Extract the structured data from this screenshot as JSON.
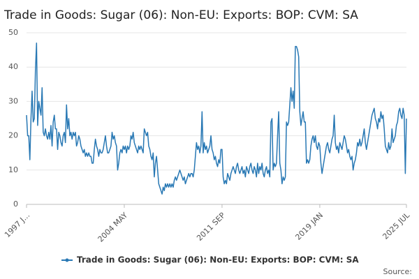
{
  "chart_data": {
    "type": "line",
    "title": "Trade in Goods: Sugar (06): Non-EU: Exports: BOP: CVM: SA",
    "source": "Source:",
    "categories": [
      "1997 J...",
      null,
      null,
      null,
      null,
      null,
      null,
      null,
      null,
      null,
      null,
      null,
      null,
      null,
      null,
      null,
      null,
      null,
      null,
      null,
      null,
      null,
      null,
      null,
      null,
      null,
      null,
      null,
      null,
      null,
      null,
      null,
      null,
      null,
      null,
      null,
      null,
      null,
      null,
      null,
      null,
      null,
      null,
      null,
      null,
      null,
      null,
      null,
      null,
      null,
      null,
      null,
      null,
      null,
      null,
      null,
      null,
      null,
      null,
      null,
      null,
      null,
      null,
      null,
      null,
      null,
      null,
      null,
      null,
      null,
      null,
      null,
      null,
      null,
      null,
      null,
      null,
      null,
      null,
      null,
      null,
      null,
      null,
      null,
      null,
      null,
      null,
      null,
      "2004 MAY",
      null,
      null,
      null,
      null,
      null,
      null,
      null,
      null,
      null,
      null,
      null,
      null,
      null,
      null,
      null,
      null,
      null,
      null,
      null,
      null,
      null,
      null,
      null,
      null,
      null,
      null,
      null,
      null,
      null,
      null,
      null,
      null,
      null,
      null,
      null,
      null,
      null,
      null,
      null,
      null,
      null,
      null,
      null,
      null,
      null,
      null,
      null,
      null,
      null,
      null,
      null,
      null,
      null,
      null,
      null,
      null,
      null,
      null,
      null,
      null,
      null,
      null,
      null,
      null,
      null,
      null,
      null,
      null,
      null,
      null,
      null,
      null,
      null,
      null,
      null,
      null,
      null,
      null,
      null,
      null,
      null,
      null,
      null,
      null,
      null,
      null,
      null,
      "2011 SEP",
      null,
      null,
      null,
      null,
      null,
      null,
      null,
      null,
      null,
      null,
      null,
      null,
      null,
      null,
      null,
      null,
      null,
      null,
      null,
      null,
      null,
      null,
      null,
      null,
      null,
      null,
      null,
      null,
      null,
      null,
      null,
      null,
      null,
      null,
      null,
      null,
      null,
      null,
      null,
      null,
      null,
      null,
      null,
      null,
      null,
      null,
      null,
      null,
      null,
      null,
      null,
      null,
      null,
      null,
      null,
      null,
      null,
      null,
      null,
      null,
      null,
      null,
      null,
      null,
      null,
      null,
      null,
      null,
      null,
      null,
      null,
      null,
      null,
      null,
      null,
      null,
      null,
      null,
      null,
      null,
      null,
      null,
      null,
      null,
      null,
      null,
      null,
      "2019 JAN",
      null,
      null,
      null,
      null,
      null,
      null,
      null,
      null,
      null,
      null,
      null,
      null,
      null,
      null,
      null,
      null,
      null,
      null,
      null,
      null,
      null,
      null,
      null,
      null,
      null,
      null,
      null,
      null,
      null,
      null,
      null,
      null,
      null,
      null,
      null,
      null,
      null,
      null,
      null,
      null,
      null,
      null,
      null,
      null,
      null,
      null,
      null,
      null,
      null,
      null,
      null,
      null,
      null,
      null,
      null,
      null,
      null,
      null,
      null,
      null,
      null,
      null,
      null,
      null,
      null,
      null,
      null,
      null,
      null,
      null,
      null,
      null,
      null,
      null,
      null,
      null,
      null,
      "2025 JUL"
    ],
    "series": [
      {
        "name": "Trade in Goods: Sugar (06): Non-EU: Exports: BOP: CVM: SA",
        "color": "#2878b4",
        "values": [
          26,
          20,
          20,
          13,
          25,
          33,
          24,
          25,
          39,
          47,
          23,
          30,
          28,
          26,
          34,
          21,
          20,
          22,
          20,
          19,
          21,
          19,
          23,
          17,
          24,
          26,
          22,
          22,
          16,
          21,
          20,
          18,
          17,
          20,
          21,
          18,
          29,
          22,
          25,
          20,
          21,
          19,
          21,
          20,
          21,
          17,
          18,
          20,
          19,
          17,
          16,
          15,
          16,
          14,
          15,
          14,
          15,
          14,
          14,
          12,
          12,
          16,
          19,
          17,
          16,
          14,
          16,
          15,
          15,
          16,
          18,
          20,
          17,
          15,
          15,
          16,
          17,
          21,
          19,
          20,
          18,
          17,
          10,
          12,
          15,
          16,
          15,
          17,
          16,
          17,
          15,
          17,
          16,
          17,
          20,
          19,
          21,
          18,
          17,
          16,
          15,
          17,
          16,
          17,
          16,
          15,
          22,
          21,
          20,
          21,
          17,
          16,
          14,
          13,
          15,
          8,
          12,
          14,
          10,
          6,
          5,
          4,
          3,
          5,
          4,
          6,
          5,
          6,
          5,
          6,
          5,
          6,
          5,
          7,
          8,
          7,
          8,
          9,
          10,
          9,
          8,
          7,
          8,
          6,
          7,
          8,
          9,
          8,
          9,
          9,
          8,
          10,
          14,
          18,
          16,
          17,
          15,
          17,
          27,
          15,
          18,
          16,
          17,
          15,
          16,
          17,
          20,
          16,
          15,
          13,
          14,
          12,
          11,
          13,
          12,
          16,
          16,
          8,
          6,
          7,
          6,
          9,
          8,
          7,
          9,
          10,
          11,
          10,
          9,
          11,
          12,
          10,
          9,
          10,
          11,
          9,
          10,
          8,
          11,
          10,
          9,
          11,
          12,
          10,
          9,
          11,
          10,
          8,
          12,
          9,
          11,
          10,
          12,
          9,
          8,
          10,
          11,
          9,
          10,
          8,
          24,
          25,
          10,
          12,
          11,
          12,
          20,
          27,
          12,
          10,
          6,
          8,
          7,
          8,
          24,
          23,
          24,
          29,
          34,
          30,
          33,
          28,
          46,
          46,
          45,
          43,
          27,
          23,
          25,
          27,
          24,
          24,
          12,
          13,
          12,
          13,
          17,
          19,
          20,
          18,
          20,
          17,
          16,
          18,
          17,
          12,
          9,
          11,
          13,
          15,
          17,
          18,
          16,
          15,
          17,
          19,
          20,
          26,
          18,
          16,
          17,
          15,
          18,
          17,
          16,
          18,
          20,
          19,
          17,
          15,
          16,
          14,
          13,
          14,
          10,
          12,
          13,
          15,
          18,
          17,
          19,
          17,
          18,
          20,
          22,
          18,
          16,
          18,
          20,
          22,
          24,
          26,
          27,
          28,
          25,
          24,
          22,
          25,
          24,
          27,
          25,
          26,
          22,
          17,
          16,
          15,
          18,
          16,
          17,
          22,
          18,
          19,
          20,
          23,
          24,
          27,
          28,
          26,
          25,
          28,
          26,
          9,
          25
        ]
      }
    ],
    "ylim": [
      0,
      50
    ],
    "yticks": [
      0,
      10,
      20,
      30,
      40,
      50
    ],
    "grid": true,
    "legend": "bottom"
  }
}
